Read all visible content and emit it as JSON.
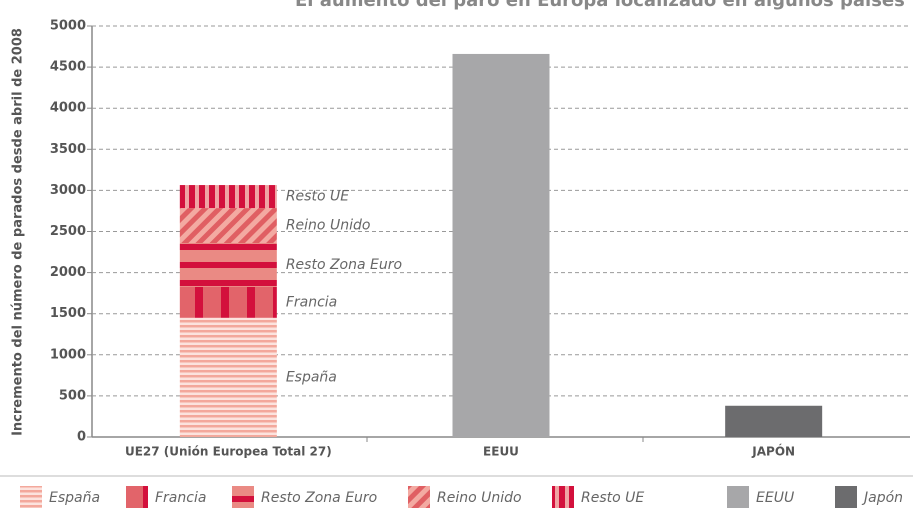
{
  "chart_data": {
    "type": "stacked_bar",
    "title": "El aumento del paro en Europa localizado en algunos países",
    "y_label": "Incremento del número de parados desde abril de 2008",
    "categories": [
      "UE27 (Unión Europea Total 27)",
      "EEUU",
      "JAPÓN"
    ],
    "series": [
      {
        "name": "España",
        "color": "#f3a89c",
        "color2": "#fce3de",
        "pattern": "hstripe",
        "values": [
          1450,
          null,
          null
        ]
      },
      {
        "name": "Francia",
        "color": "#e2646a",
        "color2": "#d3103c",
        "pattern": "vwide",
        "values": [
          375,
          null,
          null
        ]
      },
      {
        "name": "Resto Zona Euro",
        "color": "#ea8a84",
        "color2": "#d3103c",
        "pattern": "hband",
        "values": [
          535,
          null,
          null
        ]
      },
      {
        "name": "Reino Unido",
        "color": "#f3aaa2",
        "color2": "#e05f63",
        "pattern": "diag",
        "values": [
          425,
          null,
          null
        ]
      },
      {
        "name": "Resto UE",
        "color": "#d3103c",
        "color2": "#f0a4a4",
        "pattern": "vnarrow",
        "values": [
          280,
          null,
          null
        ]
      },
      {
        "name": "EEUU",
        "color": "#a7a7a9",
        "pattern": "solid",
        "values": [
          null,
          4660,
          null
        ]
      },
      {
        "name": "Japón",
        "color": "#6c6c6e",
        "pattern": "solid",
        "values": [
          null,
          null,
          380
        ]
      }
    ],
    "ylim": [
      0,
      5000
    ],
    "yticks": [
      0,
      500,
      1000,
      1500,
      2000,
      2500,
      3000,
      3500,
      4000,
      4500,
      5000
    ],
    "grid": true
  }
}
